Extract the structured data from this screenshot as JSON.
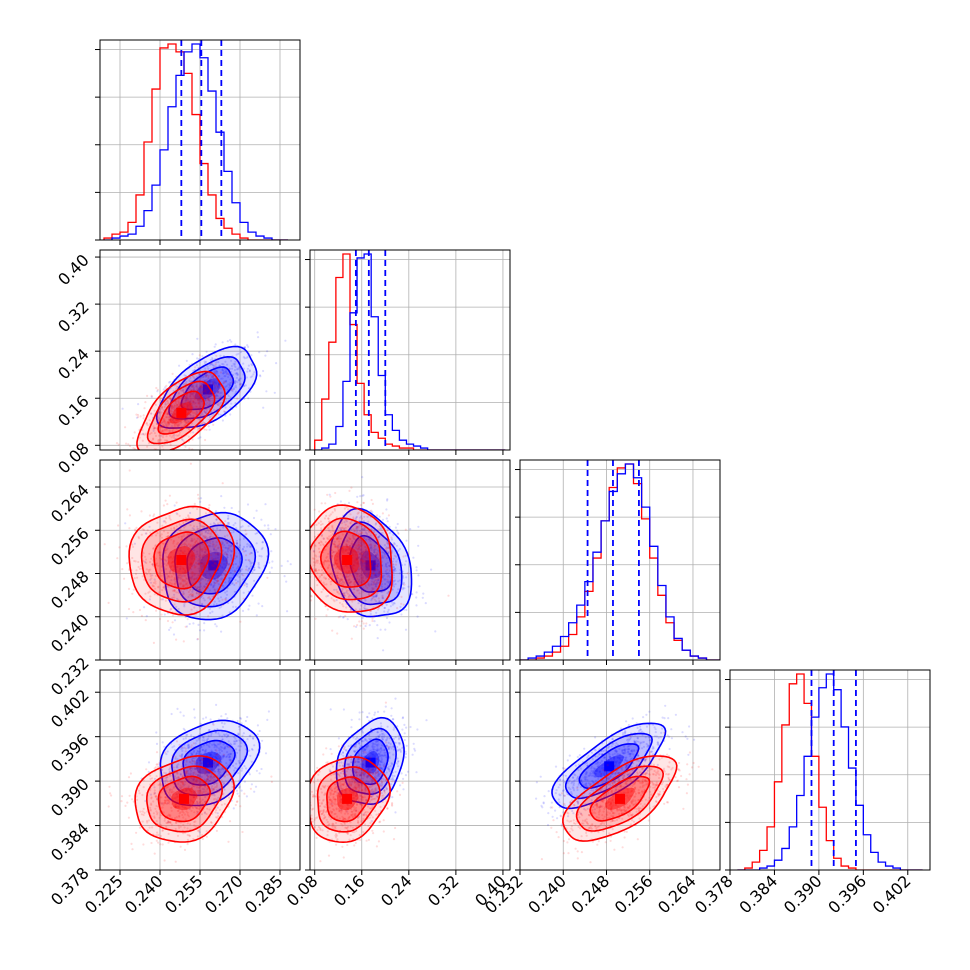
{
  "chart_data": {
    "type": "corner",
    "title": "",
    "colors": {
      "series_a": "#ff0000",
      "series_b": "#0000ff",
      "grid": "#b0b0b0",
      "frame": "#000000"
    },
    "series": [
      {
        "color": "red"
      },
      {
        "color": "blue"
      }
    ],
    "parameters": [
      {
        "ticks": [
          "0.225",
          "0.240",
          "0.255",
          "0.270",
          "0.285"
        ],
        "range": [
          0.2175,
          0.2925
        ],
        "hist_bins": [
          0.219,
          0.222,
          0.225,
          0.228,
          0.231,
          0.234,
          0.237,
          0.24,
          0.243,
          0.246,
          0.249,
          0.252,
          0.255,
          0.258,
          0.261,
          0.264,
          0.267,
          0.27,
          0.273,
          0.276,
          0.279,
          0.282,
          0.285
        ],
        "hist": {
          "red": [
            1,
            3,
            4,
            9,
            23,
            50,
            77,
            98,
            100,
            96,
            85,
            64,
            39,
            23,
            11,
            6,
            3,
            1,
            0,
            0,
            0,
            0,
            0
          ],
          "blue": [
            0,
            1,
            2,
            3,
            7,
            15,
            28,
            46,
            68,
            84,
            96,
            100,
            93,
            76,
            55,
            35,
            19,
            9,
            4,
            2,
            1,
            0,
            0
          ]
        },
        "quantiles": [
          0.248,
          0.2555,
          0.263
        ]
      },
      {
        "ticks": [
          "0.08",
          "0.16",
          "0.24",
          "0.32",
          "0.40"
        ],
        "range": [
          0.072,
          0.412
        ],
        "hist_bins": [
          0.08,
          0.092,
          0.104,
          0.116,
          0.128,
          0.14,
          0.152,
          0.164,
          0.176,
          0.188,
          0.2,
          0.212,
          0.224,
          0.236,
          0.248,
          0.26,
          0.272,
          0.284,
          0.296,
          0.308,
          0.32,
          0.332,
          0.344,
          0.356,
          0.368,
          0.38,
          0.392
        ],
        "hist": {
          "red": [
            5,
            26,
            55,
            88,
            100,
            64,
            34,
            18,
            9,
            6,
            3,
            2,
            1,
            1,
            0,
            0,
            0,
            0,
            0,
            0,
            0,
            0,
            0,
            0,
            0,
            0,
            0
          ],
          "blue": [
            0,
            1,
            3,
            12,
            35,
            70,
            98,
            100,
            68,
            38,
            18,
            10,
            5,
            3,
            2,
            1,
            0,
            0,
            0,
            0,
            0,
            0,
            0,
            0,
            0,
            0,
            0
          ]
        },
        "quantiles": [
          0.15,
          0.172,
          0.2
        ]
      },
      {
        "ticks": [
          "0.232",
          "0.240",
          "0.248",
          "0.256",
          "0.264"
        ],
        "range": [
          0.232,
          0.269
        ],
        "hist_bins": [
          0.232,
          0.2335,
          0.235,
          0.2365,
          0.238,
          0.2395,
          0.241,
          0.2425,
          0.244,
          0.2455,
          0.247,
          0.2485,
          0.25,
          0.2515,
          0.253,
          0.2545,
          0.256,
          0.2575,
          0.259,
          0.2605,
          0.262,
          0.2635,
          0.265,
          0.2665,
          0.268
        ],
        "hist": {
          "red": [
            0,
            0,
            1,
            2,
            4,
            7,
            13,
            22,
            35,
            52,
            71,
            88,
            98,
            100,
            90,
            72,
            52,
            33,
            19,
            10,
            5,
            2,
            1,
            0,
            0
          ],
          "blue": [
            0,
            1,
            2,
            4,
            7,
            12,
            19,
            28,
            40,
            55,
            71,
            86,
            95,
            100,
            93,
            78,
            58,
            38,
            22,
            11,
            5,
            2,
            1,
            0,
            0
          ]
        },
        "quantiles": [
          0.2445,
          0.2492,
          0.254
        ]
      },
      {
        "ticks": [
          "0.378",
          "0.384",
          "0.390",
          "0.396",
          "0.402"
        ],
        "range": [
          0.378,
          0.405
        ],
        "hist_bins": [
          0.379,
          0.38,
          0.381,
          0.382,
          0.383,
          0.384,
          0.385,
          0.386,
          0.387,
          0.388,
          0.389,
          0.39,
          0.391,
          0.392,
          0.393,
          0.394,
          0.395,
          0.396,
          0.397,
          0.398,
          0.399,
          0.4,
          0.401,
          0.402,
          0.403
        ],
        "hist": {
          "red": [
            0,
            1,
            4,
            10,
            22,
            45,
            74,
            95,
            100,
            85,
            58,
            32,
            15,
            6,
            2,
            1,
            0,
            0,
            0,
            0,
            0,
            0,
            0,
            0,
            0
          ],
          "blue": [
            0,
            0,
            0,
            1,
            2,
            5,
            11,
            22,
            38,
            58,
            78,
            93,
            100,
            92,
            73,
            52,
            33,
            18,
            9,
            4,
            2,
            1,
            0,
            0,
            0
          ]
        },
        "quantiles": [
          0.389,
          0.392,
          0.395
        ]
      }
    ],
    "blobs": {
      "red": {
        "0-1": {
          "mean": [
            0.248,
            0.135
          ],
          "sd": [
            0.007,
            0.03
          ],
          "rho": 0.6
        },
        "0-2": {
          "mean": [
            0.248,
            0.2505
          ],
          "sd": [
            0.0085,
            0.0043
          ],
          "rho": 0.1
        },
        "0-3": {
          "mean": [
            0.249,
            0.3876
          ],
          "sd": [
            0.008,
            0.0025
          ],
          "rho": 0.2
        },
        "1-2": {
          "mean": [
            0.135,
            0.2505
          ],
          "sd": [
            0.035,
            0.0043
          ],
          "rho": -0.1
        },
        "1-3": {
          "mean": [
            0.135,
            0.3876
          ],
          "sd": [
            0.03,
            0.0025
          ],
          "rho": 0.15
        },
        "2-3": {
          "mean": [
            0.2505,
            0.3876
          ],
          "sd": [
            0.0045,
            0.0025
          ],
          "rho": 0.65
        }
      },
      "blue": {
        "0-1": {
          "mean": [
            0.258,
            0.175
          ],
          "sd": [
            0.008,
            0.03
          ],
          "rho": 0.55
        },
        "0-2": {
          "mean": [
            0.26,
            0.2495
          ],
          "sd": [
            0.0085,
            0.0043
          ],
          "rho": 0.15
        },
        "0-3": {
          "mean": [
            0.258,
            0.3925
          ],
          "sd": [
            0.008,
            0.0025
          ],
          "rho": 0.3
        },
        "1-2": {
          "mean": [
            0.175,
            0.2495
          ],
          "sd": [
            0.03,
            0.0043
          ],
          "rho": -0.25
        },
        "1-3": {
          "mean": [
            0.175,
            0.3925
          ],
          "sd": [
            0.025,
            0.0025
          ],
          "rho": 0.25
        },
        "2-3": {
          "mean": [
            0.2485,
            0.392
          ],
          "sd": [
            0.0045,
            0.0025
          ],
          "rho": 0.72
        }
      }
    }
  }
}
